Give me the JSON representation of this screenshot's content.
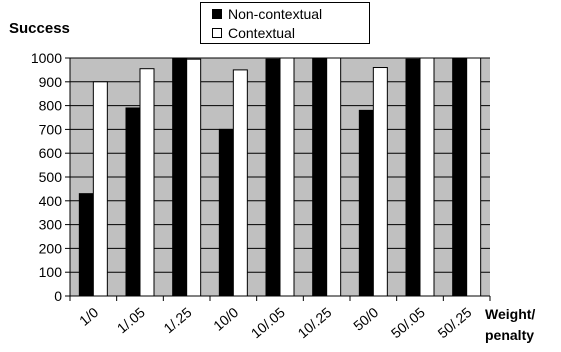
{
  "chart_data": {
    "type": "bar",
    "ylabel": "Success",
    "xlabel": "Weight/ penalty",
    "xlabel_lines": [
      "Weight/",
      "penalty"
    ],
    "categories": [
      "1/0",
      "1/.05",
      "1/.25",
      "10/0",
      "10/.05",
      "10/.25",
      "50/0",
      "50/.05",
      "50/.25"
    ],
    "series": [
      {
        "name": "Non-contextual",
        "color": "#000000",
        "values": [
          430,
          790,
          1000,
          700,
          995,
          1000,
          780,
          995,
          1000
        ]
      },
      {
        "name": "Contextual",
        "color": "#ffffff",
        "values": [
          900,
          955,
          995,
          950,
          1000,
          1000,
          960,
          1000,
          1000
        ]
      }
    ],
    "ylim": [
      0,
      1000
    ],
    "yticks": [
      0,
      100,
      200,
      300,
      400,
      500,
      600,
      700,
      800,
      900,
      1000
    ],
    "grid": true,
    "plot_background": "#c0c0c0",
    "legend_position": "top-center"
  }
}
